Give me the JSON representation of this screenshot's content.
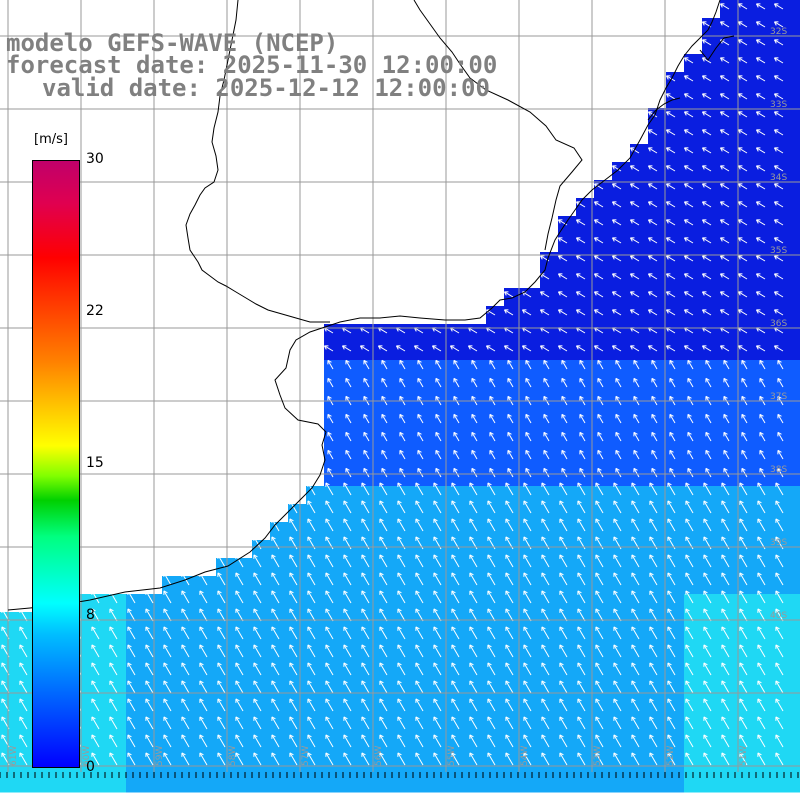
{
  "title": {
    "line1": "modelo GEFS-WAVE (NCEP)",
    "line2": "forecast date: 2025-11-30 12:00:00",
    "line3": "valid date: 2025-12-12 12:00:00"
  },
  "colorbar": {
    "unit": "[m/s]",
    "ticks": [
      "30",
      "22",
      "15",
      "8",
      "0"
    ],
    "tick_values": [
      30,
      22,
      15,
      8,
      0
    ],
    "range": [
      0,
      30
    ],
    "colors": [
      "#0000ff",
      "#00bfff",
      "#00ffff",
      "#00d000",
      "#ffff00",
      "#ff8000",
      "#ff0000",
      "#c0006a"
    ]
  },
  "map": {
    "land_color": "#ffffff",
    "coastline_color": "#000000",
    "gridline_color": "#999999",
    "arrow_color": "#ffffff",
    "field_colors": {
      "deep_blue": "#0a1ee0",
      "mid_blue": "#0f5cff",
      "light_blue": "#14a8f8",
      "cyan": "#1fd8f4"
    },
    "latitude_labels": [
      "32S",
      "33S",
      "34S",
      "35S",
      "36S",
      "37S",
      "38S",
      "39S",
      "40S"
    ],
    "longitude_labels": [
      "61W",
      "60W",
      "59W",
      "58W",
      "57W",
      "56W",
      "55W",
      "54W",
      "53W",
      "52W",
      "51W"
    ],
    "vector_field": "wind/wave direction arrows, predominantly from the southeast"
  }
}
